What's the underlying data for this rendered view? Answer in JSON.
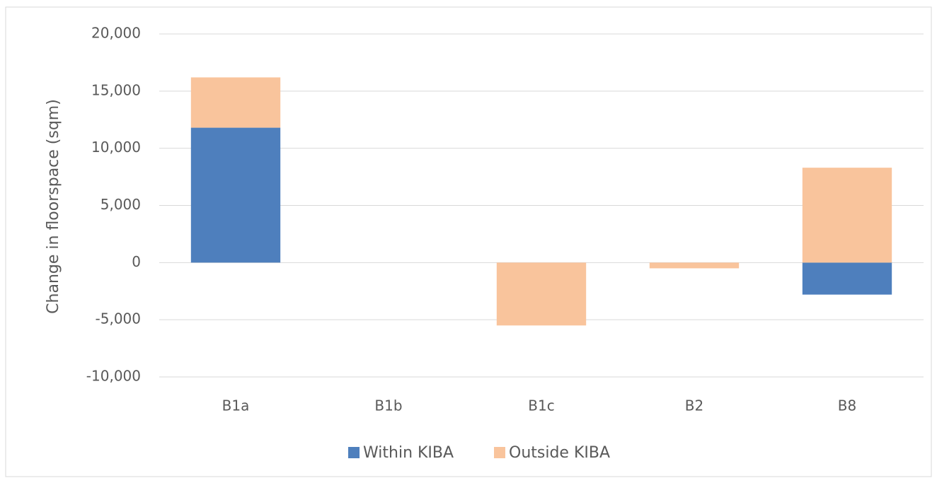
{
  "chart_data": {
    "type": "stacked-bar",
    "y_axis_label": "Change in floorspace (sqm)",
    "categories": [
      "B1a",
      "B1b",
      "B1c",
      "B2",
      "B8"
    ],
    "series": [
      {
        "name": "Within KIBA",
        "color": "#4e7fbd",
        "values": [
          11800,
          0,
          0,
          0,
          -2800
        ]
      },
      {
        "name": "Outside KIBA",
        "color": "#f9c49c",
        "values": [
          4400,
          0,
          -5500,
          -500,
          8300
        ]
      }
    ],
    "ylim": [
      -10000,
      20000
    ],
    "yticks": [
      {
        "value": -10000,
        "label": "-10,000"
      },
      {
        "value": -5000,
        "label": "-5,000"
      },
      0,
      {
        "value": 5000,
        "label": "5,000"
      },
      {
        "value": 10000,
        "label": "10,000"
      },
      {
        "value": 15000,
        "label": "15,000"
      },
      {
        "value": 20000,
        "label": "20,000"
      }
    ],
    "grid": true,
    "legend": "bottom"
  }
}
